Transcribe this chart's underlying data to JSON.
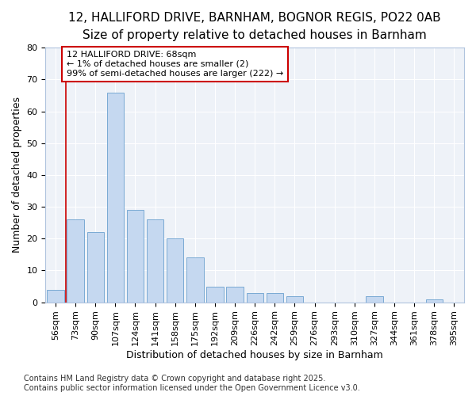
{
  "title_line1": "12, HALLIFORD DRIVE, BARNHAM, BOGNOR REGIS, PO22 0AB",
  "title_line2": "Size of property relative to detached houses in Barnham",
  "xlabel": "Distribution of detached houses by size in Barnham",
  "ylabel": "Number of detached properties",
  "categories": [
    "56sqm",
    "73sqm",
    "90sqm",
    "107sqm",
    "124sqm",
    "141sqm",
    "158sqm",
    "175sqm",
    "192sqm",
    "209sqm",
    "226sqm",
    "242sqm",
    "259sqm",
    "276sqm",
    "293sqm",
    "310sqm",
    "327sqm",
    "344sqm",
    "361sqm",
    "378sqm",
    "395sqm"
  ],
  "values": [
    4,
    26,
    22,
    66,
    29,
    26,
    20,
    14,
    5,
    5,
    3,
    3,
    2,
    0,
    0,
    0,
    2,
    0,
    0,
    1,
    0
  ],
  "bar_color": "#c5d8f0",
  "bar_edge_color": "#7aaad4",
  "annotation_box_text": "12 HALLIFORD DRIVE: 68sqm\n← 1% of detached houses are smaller (2)\n99% of semi-detached houses are larger (222) →",
  "annotation_box_color": "#cc0000",
  "vline_x": 0.5,
  "ylim": [
    0,
    80
  ],
  "yticks": [
    0,
    10,
    20,
    30,
    40,
    50,
    60,
    70,
    80
  ],
  "footer_text": "Contains HM Land Registry data © Crown copyright and database right 2025.\nContains public sector information licensed under the Open Government Licence v3.0.",
  "background_color": "#ffffff",
  "plot_bg_color": "#eef2f8",
  "grid_color": "#ffffff",
  "title_fontsize": 11,
  "subtitle_fontsize": 9.5,
  "tick_fontsize": 8,
  "ylabel_fontsize": 9,
  "xlabel_fontsize": 9,
  "footer_fontsize": 7
}
